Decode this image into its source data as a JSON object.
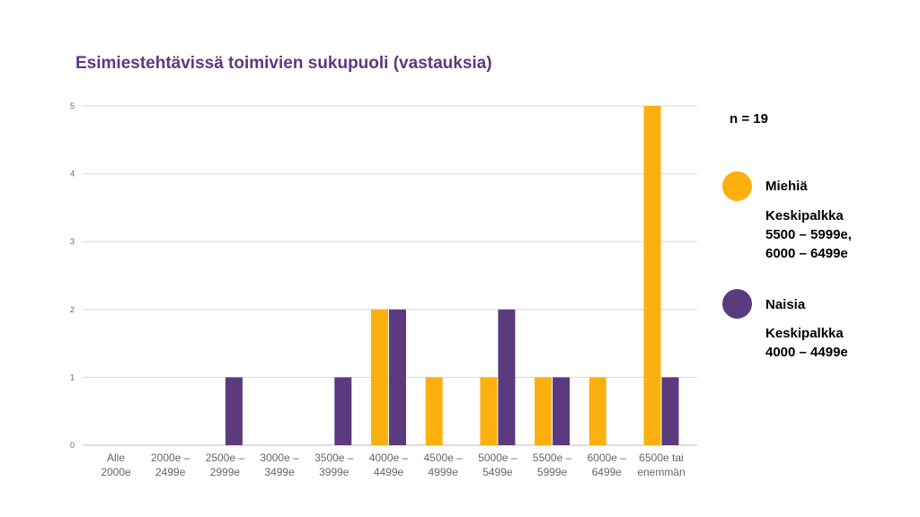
{
  "title": "Esimiestehtävissä toimivien sukupuoli (vastauksia)",
  "n_label": "n = 19",
  "colors": {
    "men": "#FCB00F",
    "women": "#5B3A7E",
    "title": "#5B3A7E",
    "grid": "#d9d9d9"
  },
  "legend": [
    {
      "name": "Miehiä",
      "color": "#FCB00F",
      "note_lines": [
        "Keskipalkka",
        "5500 – 5999e,",
        "6000 – 6499e"
      ]
    },
    {
      "name": "Naisia",
      "color": "#5B3A7E",
      "note_lines": [
        "Keskipalkka",
        "4000 – 4499e"
      ]
    }
  ],
  "chart_data": {
    "type": "bar",
    "title": "Esimiestehtävissä toimivien sukupuoli (vastauksia)",
    "categories": [
      [
        "Alle",
        "2000e"
      ],
      [
        "2000e –",
        "2499e"
      ],
      [
        "2500e –",
        "2999e"
      ],
      [
        "3000e –",
        "3499e"
      ],
      [
        "3500e –",
        "3999e"
      ],
      [
        "4000e –",
        "4499e"
      ],
      [
        "4500e –",
        "4999e"
      ],
      [
        "5000e –",
        "5499e"
      ],
      [
        "5500e –",
        "5999e"
      ],
      [
        "6000e –",
        "6499e"
      ],
      [
        "6500e tai",
        "enemmän"
      ]
    ],
    "series": [
      {
        "name": "Miehiä",
        "color": "#FCB00F",
        "values": [
          0,
          0,
          0,
          0,
          0,
          2,
          1,
          1,
          1,
          1,
          5
        ]
      },
      {
        "name": "Naisia",
        "color": "#5B3A7E",
        "values": [
          0,
          0,
          1,
          0,
          1,
          2,
          0,
          2,
          1,
          0,
          1
        ]
      }
    ],
    "ylim": [
      0,
      5
    ],
    "yticks": [
      "0",
      "1",
      "2",
      "3",
      "4",
      "5"
    ],
    "grid": true,
    "legend_position": "right"
  }
}
